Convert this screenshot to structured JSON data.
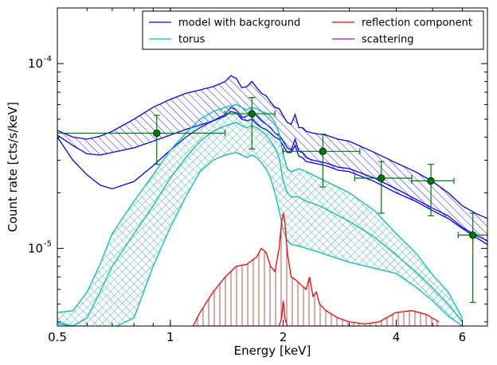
{
  "chart_data": {
    "type": "line",
    "title": "",
    "xlabel": "Energy [keV]",
    "ylabel": "Count rate [cts/s/keV]",
    "x_scale": "log",
    "y_scale": "log",
    "xlim": [
      0.5,
      7.0
    ],
    "ylim": [
      3.8e-06,
      0.0002
    ],
    "x_ticks": [
      {
        "value": 0.5,
        "label": "0.5"
      },
      {
        "value": 1,
        "label": "1"
      },
      {
        "value": 2,
        "label": "2"
      },
      {
        "value": 4,
        "label": "4"
      },
      {
        "value": 6,
        "label": "6"
      }
    ],
    "y_ticks": [
      {
        "value": 1e-05,
        "label_base": "10",
        "label_exp": "-5"
      },
      {
        "value": 0.0001,
        "label_base": "10",
        "label_exp": "-4"
      }
    ],
    "legend": {
      "position": "top-right",
      "columns": 2,
      "entries": [
        {
          "label": "model with background",
          "color": "#0000ff"
        },
        {
          "label": "reflection component",
          "color": "#ff0000"
        },
        {
          "label": "torus",
          "color": "#00bfbf"
        },
        {
          "label": "scattering",
          "color": "#bf00bf"
        }
      ]
    },
    "series": [
      {
        "key": "model",
        "color": "#0000ff",
        "hatch": "diagonal",
        "x": [
          0.5,
          0.55,
          0.6,
          0.65,
          0.7,
          0.8,
          0.9,
          1.0,
          1.1,
          1.2,
          1.3,
          1.4,
          1.45,
          1.5,
          1.55,
          1.6,
          1.65,
          1.7,
          1.75,
          1.8,
          1.85,
          1.9,
          1.95,
          2.0,
          2.05,
          2.1,
          2.15,
          2.2,
          2.25,
          2.3,
          2.4,
          2.6,
          2.8,
          3.0,
          3.5,
          4.0,
          4.5,
          5.0,
          5.5,
          6.0,
          6.5,
          7.0
        ],
        "upper": [
          4.35e-05,
          4e-05,
          3.9e-05,
          4.05e-05,
          4.3e-05,
          5e-05,
          5.8e-05,
          6.4e-05,
          6.9e-05,
          7.2e-05,
          7.5e-05,
          8e-05,
          8.6e-05,
          8.3e-05,
          7.4e-05,
          7.5e-05,
          8e-05,
          7.4e-05,
          6.9e-05,
          6.7e-05,
          6.2e-05,
          5.8e-05,
          5.7e-05,
          5.2e-05,
          4.8e-05,
          4.7e-05,
          5.3e-05,
          4.5e-05,
          4.5e-05,
          4.3e-05,
          4.2e-05,
          4.1e-05,
          3.9e-05,
          3.8e-05,
          3.3e-05,
          2.9e-05,
          2.6e-05,
          2.3e-05,
          2e-05,
          1.7e-05,
          1.55e-05,
          1.45e-05
        ],
        "lower": [
          4.1e-05,
          3.6e-05,
          3.25e-05,
          3.2e-05,
          3.3e-05,
          3.5e-05,
          3.8e-05,
          4.1e-05,
          4.4e-05,
          4.65e-05,
          4.9e-05,
          5.2e-05,
          5.5e-05,
          5.4e-05,
          5e-05,
          4.9e-05,
          5e-05,
          4.7e-05,
          4.5e-05,
          4.4e-05,
          4.2e-05,
          4e-05,
          3.9e-05,
          3.6e-05,
          3.3e-05,
          3.3e-05,
          3.6e-05,
          3.15e-05,
          3.1e-05,
          2.95e-05,
          2.9e-05,
          2.8e-05,
          2.65e-05,
          2.6e-05,
          2.3e-05,
          2e-05,
          1.8e-05,
          1.6e-05,
          1.45e-05,
          1.28e-05,
          1.15e-05,
          1.05e-05
        ],
        "inner": [
          4e-05,
          3e-05,
          2.5e-05,
          2.2e-05,
          2.1e-05,
          2.3e-05,
          2.8e-05,
          3.4e-05,
          4e-05,
          4.5e-05,
          4.9e-05,
          5.3e-05,
          5.8e-05,
          5.6e-05,
          5.1e-05,
          5.2e-05,
          5.6e-05,
          5.2e-05,
          4.9e-05,
          4.7e-05,
          4.5e-05,
          4.2e-05,
          4.1e-05,
          3.8e-05,
          3.5e-05,
          3.4e-05,
          3.9e-05,
          3.35e-05,
          3.3e-05,
          3.1e-05,
          3e-05,
          2.9e-05,
          2.75e-05,
          2.7e-05,
          2.4e-05,
          2.1e-05,
          1.85e-05,
          1.65e-05,
          1.5e-05,
          1.3e-05,
          1.18e-05,
          1.1e-05
        ]
      },
      {
        "key": "torus",
        "color": "#00bfbf",
        "hatch": "cross",
        "x": [
          0.5,
          0.55,
          0.6,
          0.65,
          0.7,
          0.8,
          0.9,
          1.0,
          1.1,
          1.2,
          1.3,
          1.4,
          1.5,
          1.55,
          1.6,
          1.65,
          1.7,
          1.75,
          1.8,
          1.85,
          1.9,
          1.95,
          2.0,
          2.05,
          2.1,
          2.2,
          2.3,
          2.5,
          3.0,
          3.5,
          4.0,
          4.5,
          5.0,
          5.5,
          6.0
        ],
        "upper": [
          4.5e-06,
          4.6e-06,
          5.8e-06,
          8.2e-06,
          1.2e-05,
          1.8e-05,
          2.5e-05,
          3.4e-05,
          4.2e-05,
          5e-05,
          5.5e-05,
          5.8e-05,
          6e-05,
          5.8e-05,
          5.6e-05,
          5.8e-05,
          5.7e-05,
          5.5e-05,
          5.4e-05,
          5.2e-05,
          4.8e-05,
          4.2e-05,
          3.2e-05,
          2.7e-05,
          2.6e-05,
          2.7e-05,
          2.6e-05,
          2.4e-05,
          2e-05,
          1.6e-05,
          1.2e-05,
          9.5e-06,
          7.2e-06,
          5.8e-06,
          4.2e-06
        ],
        "lower": [
          4e-06,
          3.8e-06,
          3.6e-06,
          3.6e-06,
          3.7e-06,
          4.2e-06,
          8e-06,
          1.3e-05,
          1.9e-05,
          2.6e-05,
          3e-05,
          3.2e-05,
          3.3e-05,
          3.2e-05,
          3.1e-05,
          3.2e-05,
          3.1e-05,
          2.9e-05,
          2.7e-05,
          2.4e-05,
          2e-05,
          1.6e-05,
          1.25e-05,
          1.1e-05,
          1.05e-05,
          1.03e-05,
          1e-05,
          9.5e-06,
          8.4e-06,
          7.8e-06,
          7.3e-06,
          6.2e-06,
          5.2e-06,
          4.3e-06,
          3.8e-06
        ],
        "inner": [
          3.9e-06,
          3.8e-06,
          4.2e-06,
          5.8e-06,
          8e-06,
          1.2e-05,
          1.7e-05,
          2.4e-05,
          3.1e-05,
          3.8e-05,
          4.3e-05,
          4.6e-05,
          4.8e-05,
          4.6e-05,
          4.5e-05,
          4.6e-05,
          4.5e-05,
          4.3e-05,
          4.1e-05,
          3.8e-05,
          3.5e-05,
          3.1e-05,
          2.3e-05,
          2e-05,
          1.9e-05,
          1.9e-05,
          1.8e-05,
          1.7e-05,
          1.4e-05,
          1.15e-05,
          9.2e-06,
          7.5e-06,
          6.1e-06,
          5e-06,
          4e-06
        ]
      },
      {
        "key": "reflection",
        "color": "#ff0000",
        "hatch": "vertical",
        "x": [
          1.15,
          1.2,
          1.3,
          1.4,
          1.5,
          1.6,
          1.7,
          1.75,
          1.8,
          1.85,
          1.9,
          1.95,
          1.98,
          2.0,
          2.02,
          2.05,
          2.1,
          2.15,
          2.2,
          2.3,
          2.35,
          2.4,
          2.45,
          2.5,
          2.6,
          2.8,
          3.0,
          3.3,
          3.6,
          4.0,
          4.4,
          4.8,
          5.2
        ],
        "upper": [
          3.8e-06,
          4.5e-06,
          5.8e-06,
          7e-06,
          8e-06,
          8.2e-06,
          9e-06,
          1e-05,
          9.5e-06,
          8e-06,
          7.5e-06,
          1e-05,
          1.4e-05,
          1.55e-05,
          1.4e-05,
          9.5e-06,
          7e-06,
          6.8e-06,
          6.5e-06,
          6e-06,
          7e-06,
          5.5e-06,
          5.8e-06,
          5e-06,
          4.6e-06,
          4.2e-06,
          4e-06,
          3.9e-06,
          4e-06,
          4.5e-06,
          4.6e-06,
          4.4e-06,
          4e-06
        ],
        "lower": [
          3.8e-06,
          3.8e-06,
          3.8e-06,
          3.8e-06,
          3.8e-06,
          3.8e-06,
          3.8e-06,
          3.8e-06,
          3.8e-06,
          3.8e-06,
          3.8e-06,
          3.8e-06,
          4.2e-06,
          5.2e-06,
          4.2e-06,
          3.8e-06,
          3.8e-06,
          3.8e-06,
          3.8e-06,
          3.8e-06,
          3.8e-06,
          3.8e-06,
          3.8e-06,
          3.8e-06,
          3.8e-06,
          3.8e-06,
          3.8e-06,
          3.8e-06,
          3.8e-06,
          3.8e-06,
          3.8e-06,
          3.8e-06,
          3.8e-06
        ]
      }
    ],
    "data_points": {
      "color": "#007700",
      "points": [
        {
          "x": 0.92,
          "y": 4.2e-05,
          "xerr": [
            0.5,
            1.4
          ],
          "yerr": [
            2.85e-05,
            5.25e-05
          ]
        },
        {
          "x": 1.65,
          "y": 5.35e-05,
          "xerr": [
            1.4,
            1.9
          ],
          "yerr": [
            3.45e-05,
            6.55e-05
          ]
        },
        {
          "x": 2.55,
          "y": 3.35e-05,
          "xerr": [
            2.0,
            3.2
          ],
          "yerr": [
            2.15e-05,
            4.15e-05
          ]
        },
        {
          "x": 3.65,
          "y": 2.4e-05,
          "xerr": [
            3.1,
            4.4
          ],
          "yerr": [
            1.55e-05,
            2.95e-05
          ]
        },
        {
          "x": 4.95,
          "y": 2.32e-05,
          "xerr": [
            4.4,
            5.7
          ],
          "yerr": [
            1.5e-05,
            2.85e-05
          ]
        },
        {
          "x": 6.4,
          "y": 1.18e-05,
          "xerr": [
            5.85,
            7.0
          ],
          "yerr": [
            5.1e-06,
            1.55e-05
          ]
        }
      ]
    }
  }
}
